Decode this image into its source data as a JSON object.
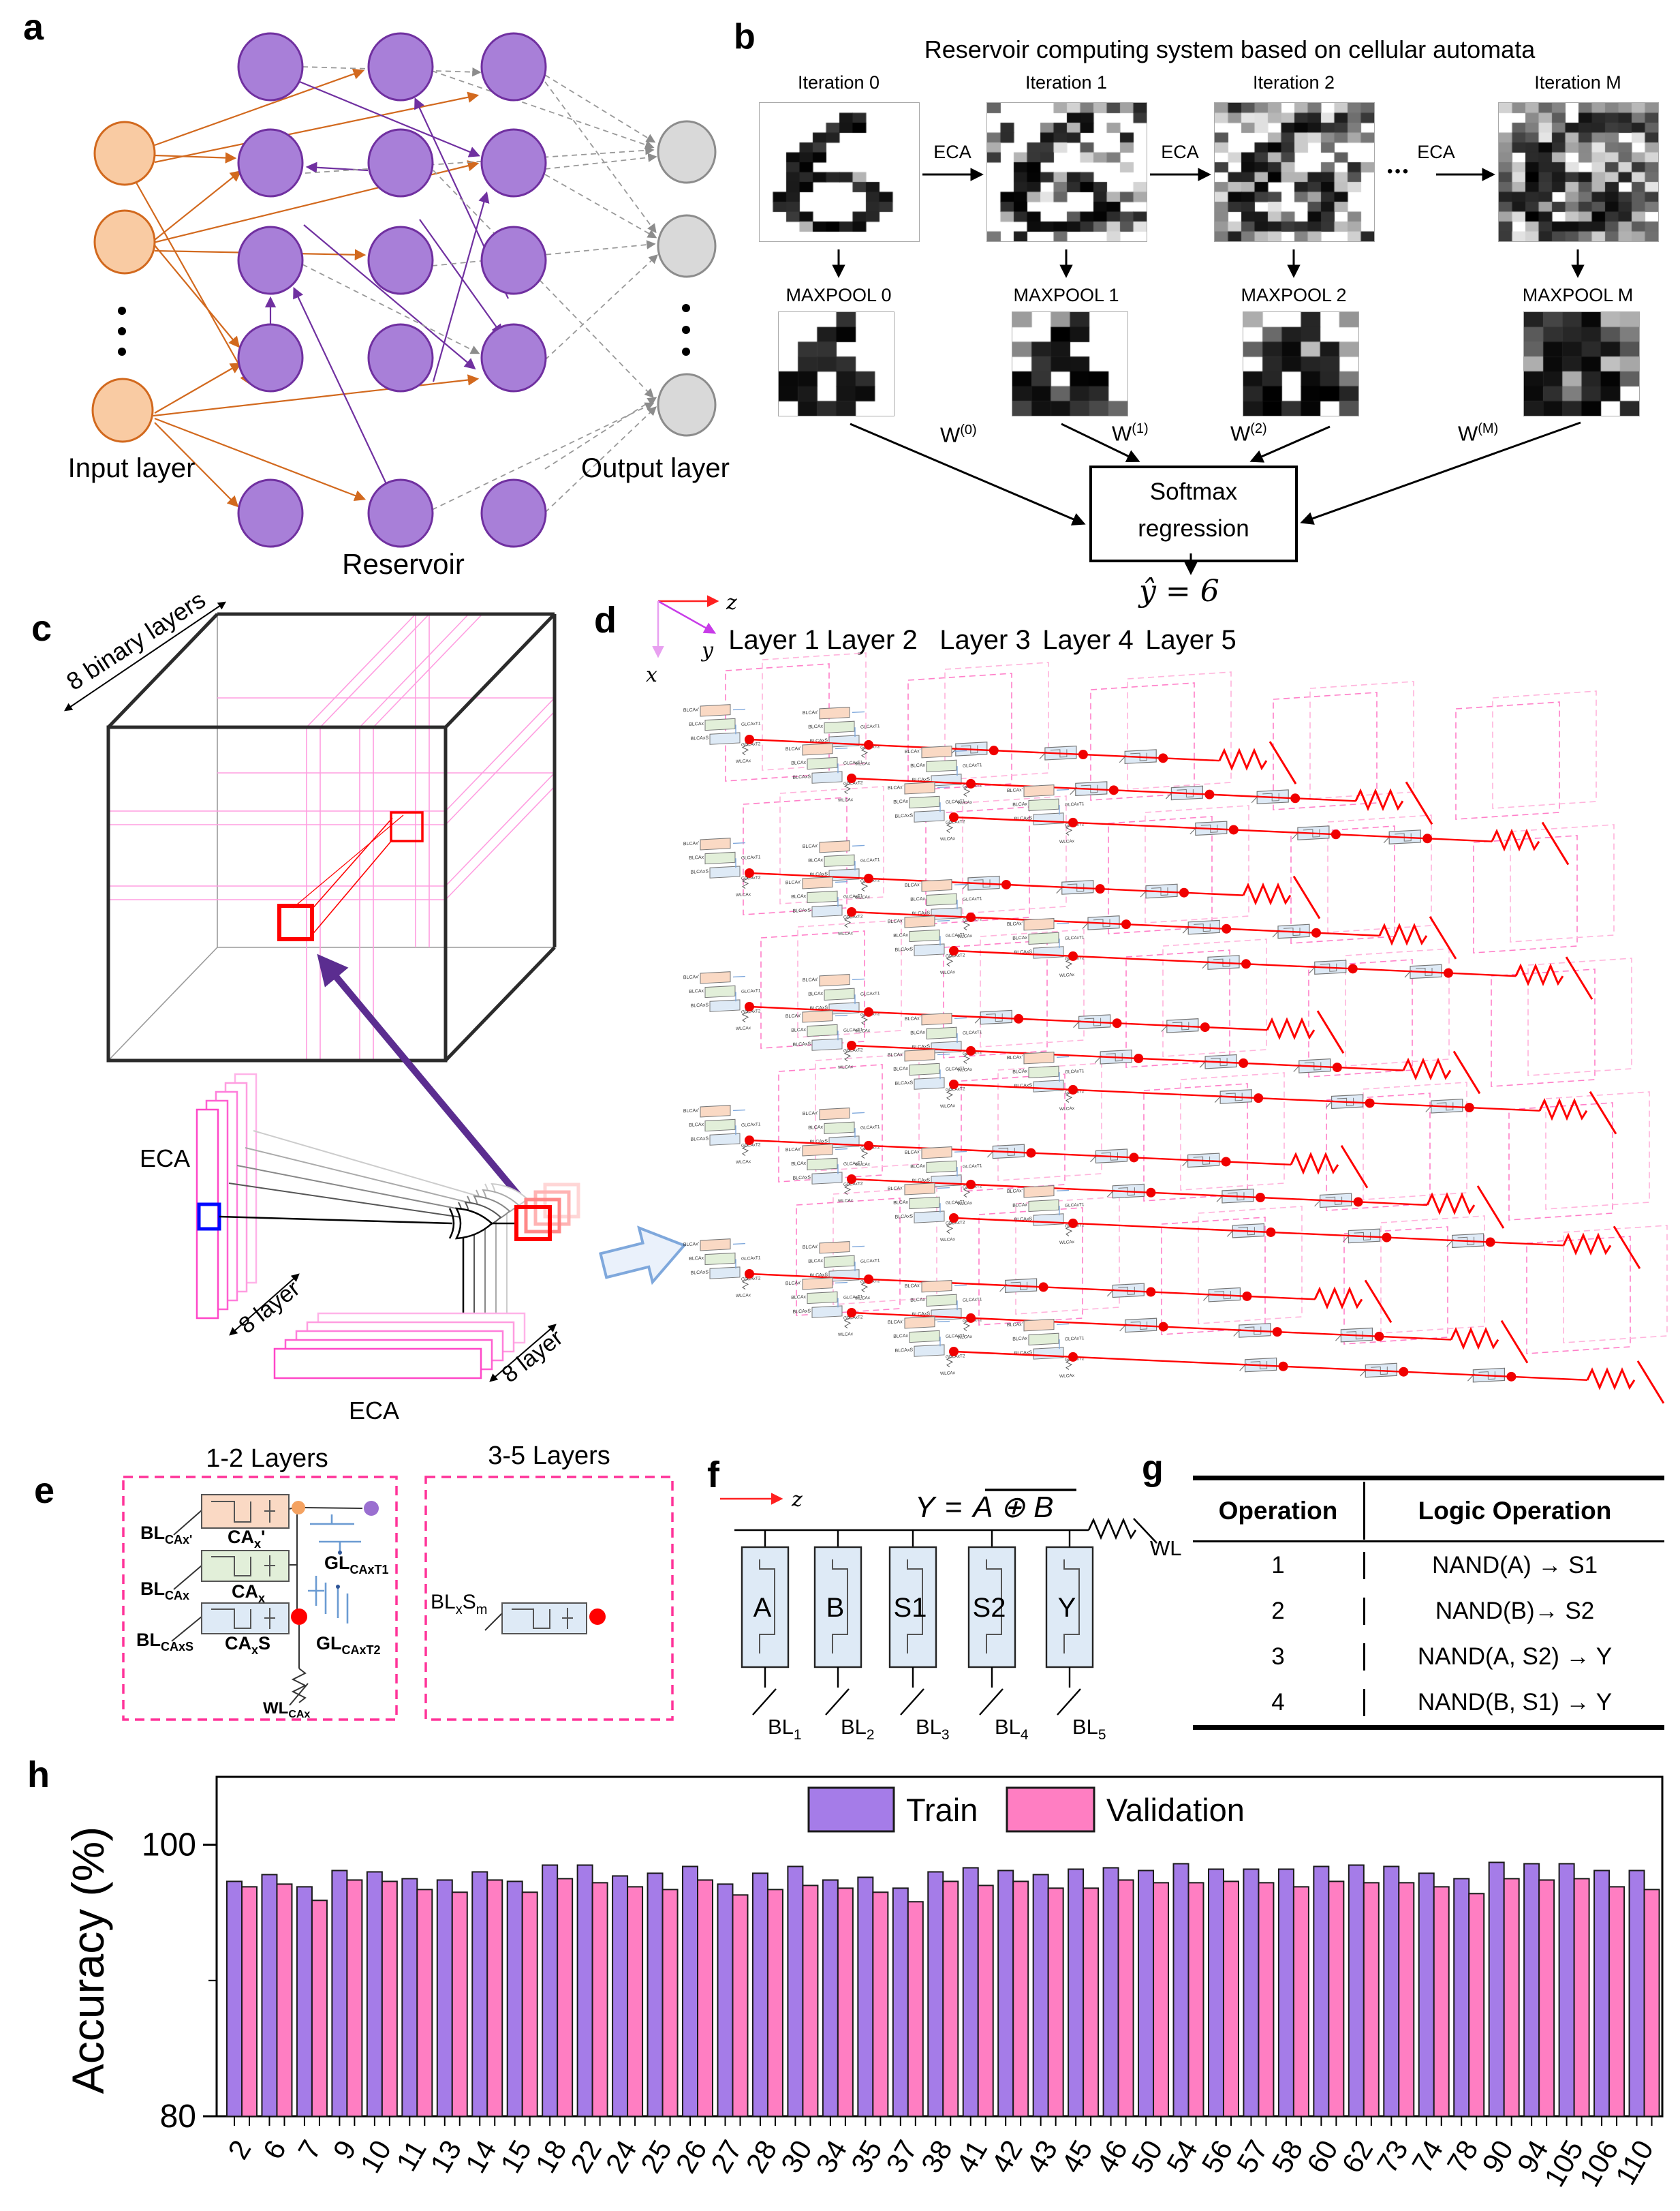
{
  "panel_letters": {
    "a": "a",
    "b": "b",
    "c": "c",
    "d": "d",
    "e": "e",
    "f": "f",
    "g": "g",
    "h": "h"
  },
  "panel_a": {
    "input_label": "Input layer",
    "reservoir_label": "Reservoir",
    "output_label": "Output layer",
    "colors": {
      "input_fill": "#F9CBA3",
      "input_stroke": "#D2691E",
      "reservoir_fill": "#A87FD8",
      "reservoir_stroke": "#7030A0",
      "output_fill": "#D9D9D9",
      "output_stroke": "#8C8C8C"
    }
  },
  "panel_b": {
    "title": "Reservoir computing system based on cellular automata",
    "iterations": [
      "Iteration 0",
      "Iteration 1",
      "Iteration 2",
      "Iteration M"
    ],
    "eca_label": "ECA",
    "ellipsis": "•••",
    "maxpools": [
      "MAXPOOL 0",
      "MAXPOOL 1",
      "MAXPOOL 2",
      "MAXPOOL M"
    ],
    "weights": [
      {
        "base": "W",
        "sup": "(0)"
      },
      {
        "base": "W",
        "sup": "(1)"
      },
      {
        "base": "W",
        "sup": "(2)"
      },
      {
        "base": "W",
        "sup": "(M)"
      }
    ],
    "softmax_line1": "Softmax",
    "softmax_line2": "regression",
    "prediction": "ŷ = 6"
  },
  "panel_c": {
    "binary_layers_label": "8 binary layers",
    "eca_top_label": "ECA",
    "eca_bottom_label": "ECA",
    "layer8_label_top": "8 layer",
    "layer8_label_bottom": "8 layer"
  },
  "panel_d": {
    "axis": {
      "x": "x",
      "y": "y",
      "z": "z"
    },
    "layers": [
      "Layer 1",
      "Layer 2",
      "Layer 3",
      "Layer 4",
      "Layer 5"
    ]
  },
  "ca": {
    "bl_caxp": {
      "base": "BL",
      "sub": "CAx'"
    },
    "bl_cax": {
      "base": "BL",
      "sub": "CAx"
    },
    "bl_caxs": {
      "base": "BL",
      "sub": "CAxS"
    },
    "ca_xp": {
      "base": "CA",
      "sub": "x",
      "post": "'"
    },
    "ca_x": {
      "base": "CA",
      "sub": "x"
    },
    "ca_xs": {
      "base": "CA",
      "sub": "x",
      "post": "S"
    },
    "gl_caxt1": {
      "base": "GL",
      "sub": "CAxT1"
    },
    "gl_caxt2": {
      "base": "GL",
      "sub": "CAxT2"
    },
    "wl_cax": {
      "base": "WL",
      "sub": "CAx"
    },
    "bl_x_s_m": {
      "b1": "BL",
      "s1": "x",
      "b2": "S",
      "s2": "m"
    }
  },
  "panel_e": {
    "title_12": "1-2 Layers",
    "title_35": "3-5 Layers"
  },
  "panel_f": {
    "z": "z",
    "equation": {
      "lhs": "Y",
      "eq": "=",
      "rhs": "A ⊕ B"
    },
    "cells": [
      "A",
      "B",
      "S1",
      "S2",
      "Y"
    ],
    "bitlines": [
      {
        "base": "BL",
        "sub": "1"
      },
      {
        "base": "BL",
        "sub": "2"
      },
      {
        "base": "BL",
        "sub": "3"
      },
      {
        "base": "BL",
        "sub": "4"
      },
      {
        "base": "BL",
        "sub": "5"
      }
    ],
    "wordline": "WL"
  },
  "panel_g": {
    "headers": [
      "Operation",
      "Logic Operation"
    ],
    "rows": [
      [
        "1",
        "NAND(A) → S1"
      ],
      [
        "2",
        "NAND(B)→ S2"
      ],
      [
        "3",
        "NAND(A, S2) → Y"
      ],
      [
        "4",
        "NAND(B, S1) → Y"
      ]
    ]
  },
  "chart_data": {
    "type": "bar",
    "title": "",
    "xlabel": "",
    "ylabel": "Accuracy (%)",
    "ylim": [
      80,
      105
    ],
    "yticks_labeled": [
      100,
      80
    ],
    "ytick_minor": 90,
    "grid": false,
    "legend_position": "top-inside",
    "categories": [
      "2",
      "6",
      "7",
      "9",
      "10",
      "11",
      "13",
      "14",
      "15",
      "18",
      "22",
      "24",
      "25",
      "26",
      "27",
      "28",
      "30",
      "34",
      "35",
      "37",
      "38",
      "41",
      "42",
      "43",
      "45",
      "46",
      "50",
      "54",
      "56",
      "57",
      "58",
      "60",
      "62",
      "73",
      "74",
      "78",
      "90",
      "94",
      "105",
      "106",
      "110"
    ],
    "series": [
      {
        "name": "Train",
        "color": "#A57CE8",
        "values": [
          97.3,
          97.8,
          96.9,
          98.1,
          98.0,
          97.5,
          97.4,
          98.0,
          97.3,
          98.5,
          98.5,
          97.7,
          97.9,
          98.4,
          97.1,
          97.9,
          98.4,
          97.4,
          97.6,
          96.8,
          98.0,
          98.3,
          98.1,
          97.8,
          98.2,
          98.3,
          98.1,
          98.6,
          98.2,
          98.2,
          98.2,
          98.4,
          98.5,
          98.4,
          97.9,
          97.5,
          98.7,
          98.6,
          98.6,
          98.1,
          98.1
        ]
      },
      {
        "name": "Validation",
        "color": "#FF7EC2",
        "values": [
          96.9,
          97.1,
          95.9,
          97.4,
          97.3,
          96.7,
          96.5,
          97.4,
          96.5,
          97.5,
          97.2,
          96.9,
          96.7,
          97.4,
          96.3,
          96.7,
          97.0,
          96.8,
          96.5,
          95.8,
          97.3,
          97.0,
          97.3,
          96.8,
          96.8,
          97.4,
          97.2,
          97.2,
          97.3,
          97.2,
          96.9,
          97.3,
          97.2,
          97.2,
          96.9,
          96.4,
          97.5,
          97.4,
          97.5,
          96.9,
          96.7
        ]
      }
    ]
  }
}
